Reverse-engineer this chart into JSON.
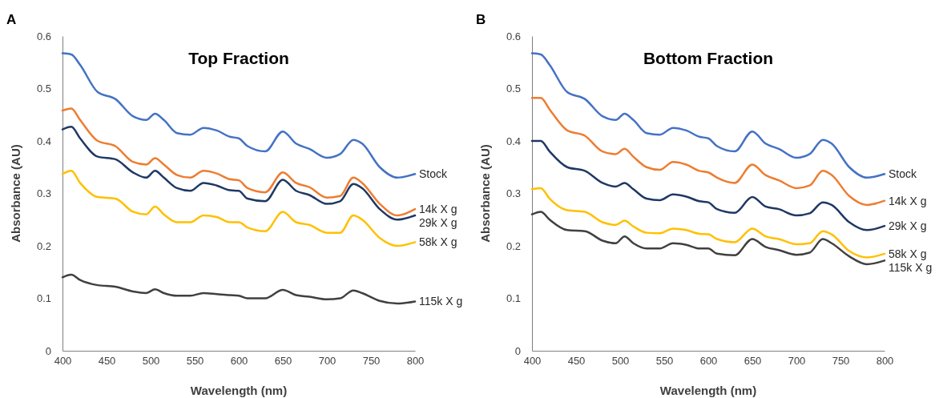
{
  "chart_data": [
    {
      "type": "line",
      "title": "Top Fraction",
      "xlabel": "Wavelength (nm)",
      "ylabel": "Absorbance (AU)",
      "annotations": [
        "A"
      ],
      "xlim": [
        400,
        800
      ],
      "xticks": [
        400,
        450,
        500,
        550,
        600,
        650,
        700,
        750,
        800
      ],
      "ylim": [
        0,
        0.6
      ],
      "yticks": [
        0,
        0.1,
        0.2,
        0.3,
        0.4,
        0.5,
        0.6
      ],
      "grid": false,
      "legend": false,
      "marker": "none",
      "line_style": "solid",
      "x": [
        400,
        410,
        420,
        440,
        460,
        480,
        495,
        505,
        515,
        530,
        545,
        560,
        575,
        590,
        600,
        610,
        630,
        650,
        665,
        680,
        700,
        715,
        730,
        740,
        760,
        780,
        800
      ],
      "series": [
        {
          "name": "Stock",
          "color": "#4472c4",
          "values": [
            0.567,
            0.565,
            0.545,
            0.493,
            0.48,
            0.447,
            0.44,
            0.452,
            0.44,
            0.415,
            0.412,
            0.425,
            0.42,
            0.408,
            0.405,
            0.39,
            0.38,
            0.418,
            0.395,
            0.385,
            0.368,
            0.375,
            0.402,
            0.395,
            0.35,
            0.33,
            0.337
          ]
        },
        {
          "name": "14k X g",
          "color": "#ed7d31",
          "values": [
            0.458,
            0.462,
            0.44,
            0.4,
            0.39,
            0.36,
            0.355,
            0.367,
            0.355,
            0.335,
            0.33,
            0.343,
            0.338,
            0.327,
            0.325,
            0.31,
            0.302,
            0.34,
            0.32,
            0.312,
            0.292,
            0.295,
            0.33,
            0.32,
            0.28,
            0.258,
            0.27
          ]
        },
        {
          "name": "29k X g",
          "color": "#1f3864",
          "values": [
            0.422,
            0.427,
            0.405,
            0.37,
            0.365,
            0.34,
            0.33,
            0.343,
            0.33,
            0.31,
            0.305,
            0.32,
            0.315,
            0.306,
            0.305,
            0.29,
            0.285,
            0.326,
            0.305,
            0.297,
            0.28,
            0.285,
            0.318,
            0.31,
            0.27,
            0.25,
            0.258
          ]
        },
        {
          "name": "58k X g",
          "color": "#ffc000",
          "values": [
            0.337,
            0.343,
            0.32,
            0.293,
            0.29,
            0.265,
            0.26,
            0.275,
            0.26,
            0.245,
            0.245,
            0.258,
            0.255,
            0.245,
            0.245,
            0.235,
            0.228,
            0.265,
            0.245,
            0.24,
            0.225,
            0.225,
            0.258,
            0.25,
            0.215,
            0.2,
            0.207
          ]
        },
        {
          "name": "115k X g",
          "color": "#404040",
          "values": [
            0.14,
            0.145,
            0.135,
            0.125,
            0.122,
            0.113,
            0.11,
            0.117,
            0.11,
            0.105,
            0.105,
            0.11,
            0.108,
            0.106,
            0.105,
            0.1,
            0.1,
            0.116,
            0.106,
            0.103,
            0.098,
            0.1,
            0.115,
            0.11,
            0.095,
            0.09,
            0.094
          ]
        }
      ]
    },
    {
      "type": "line",
      "title": "Bottom Fraction",
      "xlabel": "Wavelength (nm)",
      "ylabel": "Absorbance (AU)",
      "annotations": [
        "B"
      ],
      "xlim": [
        400,
        800
      ],
      "xticks": [
        400,
        450,
        500,
        550,
        600,
        650,
        700,
        750,
        800
      ],
      "ylim": [
        0,
        0.6
      ],
      "yticks": [
        0,
        0.1,
        0.2,
        0.3,
        0.4,
        0.5,
        0.6
      ],
      "grid": false,
      "legend": false,
      "marker": "none",
      "line_style": "solid",
      "x": [
        400,
        410,
        420,
        440,
        460,
        480,
        495,
        505,
        515,
        530,
        545,
        560,
        575,
        590,
        600,
        610,
        630,
        650,
        665,
        680,
        700,
        715,
        730,
        740,
        760,
        780,
        800
      ],
      "series": [
        {
          "name": "Stock",
          "color": "#4472c4",
          "values": [
            0.567,
            0.565,
            0.545,
            0.493,
            0.48,
            0.447,
            0.44,
            0.452,
            0.44,
            0.415,
            0.412,
            0.425,
            0.42,
            0.408,
            0.405,
            0.39,
            0.38,
            0.418,
            0.395,
            0.385,
            0.368,
            0.375,
            0.402,
            0.395,
            0.35,
            0.33,
            0.337
          ]
        },
        {
          "name": "14k X g",
          "color": "#ed7d31",
          "values": [
            0.482,
            0.482,
            0.46,
            0.42,
            0.41,
            0.38,
            0.375,
            0.385,
            0.37,
            0.35,
            0.345,
            0.36,
            0.355,
            0.343,
            0.34,
            0.33,
            0.32,
            0.355,
            0.335,
            0.325,
            0.31,
            0.315,
            0.343,
            0.335,
            0.295,
            0.278,
            0.286
          ]
        },
        {
          "name": "29k X g",
          "color": "#1f3864",
          "values": [
            0.4,
            0.4,
            0.38,
            0.35,
            0.343,
            0.32,
            0.313,
            0.32,
            0.308,
            0.29,
            0.287,
            0.298,
            0.294,
            0.285,
            0.283,
            0.27,
            0.263,
            0.293,
            0.275,
            0.27,
            0.258,
            0.262,
            0.283,
            0.278,
            0.245,
            0.23,
            0.238
          ]
        },
        {
          "name": "58k X g",
          "color": "#ffc000",
          "values": [
            0.308,
            0.31,
            0.29,
            0.268,
            0.265,
            0.245,
            0.24,
            0.248,
            0.237,
            0.225,
            0.224,
            0.233,
            0.23,
            0.223,
            0.222,
            0.213,
            0.207,
            0.233,
            0.218,
            0.213,
            0.203,
            0.205,
            0.228,
            0.222,
            0.19,
            0.178,
            0.185
          ]
        },
        {
          "name": "115k X g",
          "color": "#404040",
          "values": [
            0.26,
            0.265,
            0.25,
            0.23,
            0.228,
            0.21,
            0.205,
            0.218,
            0.205,
            0.195,
            0.195,
            0.205,
            0.202,
            0.195,
            0.195,
            0.185,
            0.182,
            0.213,
            0.198,
            0.192,
            0.183,
            0.187,
            0.213,
            0.205,
            0.18,
            0.165,
            0.172
          ]
        }
      ]
    }
  ]
}
